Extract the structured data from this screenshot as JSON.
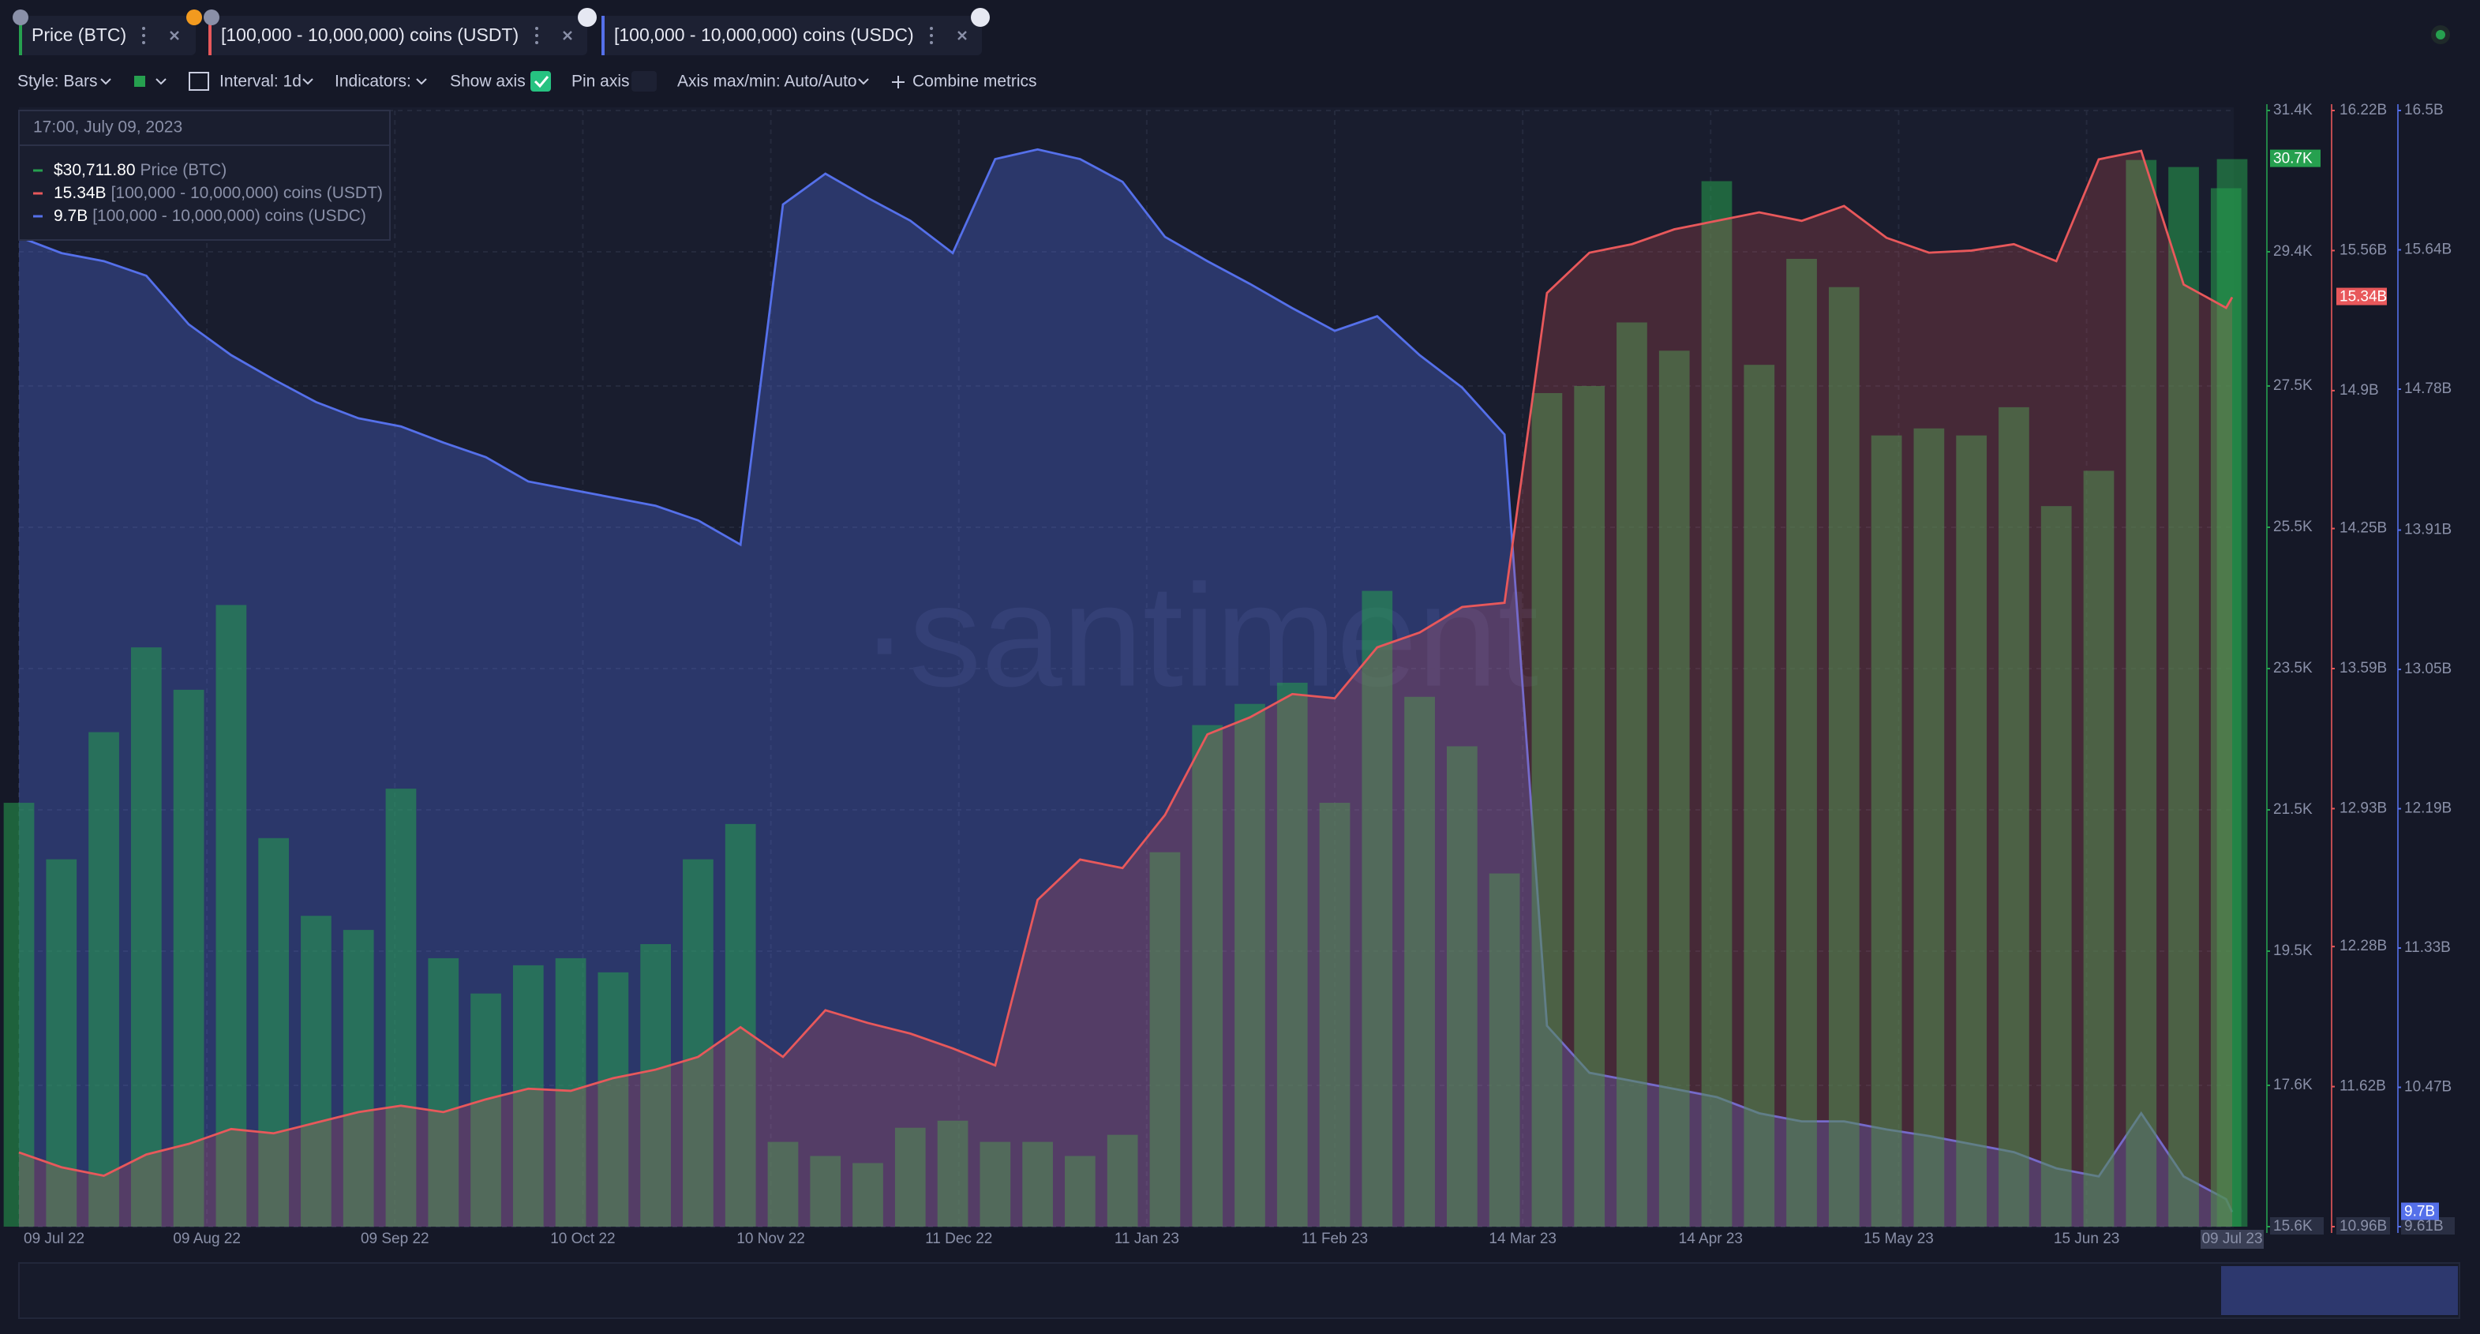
{
  "ui": {
    "style": "Style: Bars",
    "interval": "Interval: 1d",
    "indicators": "Indicators:",
    "show_axis": "Show axis",
    "pin_axis": "Pin axis",
    "axis_minmax": "Axis max/min: Auto/Auto",
    "combine": "Combine metrics",
    "watermark": "·santiment"
  },
  "chart_data": {
    "type": "bar",
    "tooltip": {
      "title": "17:00, July 09, 2023",
      "rows": [
        "$30,711.80",
        "15.34B",
        "9.7B"
      ]
    },
    "x": [
      "2022-07-09",
      "2022-07-16",
      "2022-07-23",
      "2022-07-30",
      "2022-08-06",
      "2022-08-13",
      "2022-08-20",
      "2022-08-27",
      "2022-09-03",
      "2022-09-10",
      "2022-09-17",
      "2022-09-24",
      "2022-10-01",
      "2022-10-08",
      "2022-10-15",
      "2022-10-22",
      "2022-10-29",
      "2022-11-05",
      "2022-11-12",
      "2022-11-19",
      "2022-11-26",
      "2022-12-03",
      "2022-12-10",
      "2022-12-17",
      "2022-12-24",
      "2022-12-31",
      "2023-01-07",
      "2023-01-14",
      "2023-01-21",
      "2023-01-28",
      "2023-02-04",
      "2023-02-11",
      "2023-02-18",
      "2023-02-25",
      "2023-03-04",
      "2023-03-11",
      "2023-03-18",
      "2023-03-25",
      "2023-04-01",
      "2023-04-08",
      "2023-04-15",
      "2023-04-22",
      "2023-04-29",
      "2023-05-06",
      "2023-05-13",
      "2023-05-20",
      "2023-05-27",
      "2023-06-03",
      "2023-06-10",
      "2023-06-17",
      "2023-06-24",
      "2023-07-01",
      "2023-07-08",
      "2023-07-09"
    ],
    "xlim": [
      "2022-07-09",
      "2023-07-09"
    ],
    "xticks": [
      {
        "value": "2022-07-09",
        "label": "09 Jul 22"
      },
      {
        "value": "2022-08-09",
        "label": "09 Aug 22"
      },
      {
        "value": "2022-09-09",
        "label": "09 Sep 22"
      },
      {
        "value": "2022-10-10",
        "label": "10 Oct 22"
      },
      {
        "value": "2022-11-10",
        "label": "10 Nov 22"
      },
      {
        "value": "2022-12-11",
        "label": "11 Dec 22"
      },
      {
        "value": "2023-01-11",
        "label": "11 Jan 23"
      },
      {
        "value": "2023-02-11",
        "label": "11 Feb 23"
      },
      {
        "value": "2023-03-14",
        "label": "14 Mar 23"
      },
      {
        "value": "2023-04-14",
        "label": "14 Apr 23"
      },
      {
        "value": "2023-05-15",
        "label": "15 May 23"
      },
      {
        "value": "2023-06-15",
        "label": "15 Jun 23"
      },
      {
        "value": "2023-07-09",
        "label": "09 Jul 23"
      }
    ],
    "ylim": [
      15600,
      31400
    ],
    "yticks": [
      {
        "value": 15600,
        "label": "15.6K"
      },
      {
        "value": 17600,
        "label": "17.6K"
      },
      {
        "value": 19500,
        "label": "19.5K"
      },
      {
        "value": 21500,
        "label": "21.5K"
      },
      {
        "value": 23500,
        "label": "23.5K"
      },
      {
        "value": 25500,
        "label": "25.5K"
      },
      {
        "value": 27500,
        "label": "27.5K"
      },
      {
        "value": 29400,
        "label": "29.4K"
      },
      {
        "value": 31400,
        "label": "31.4K"
      }
    ],
    "y2lim": [
      10.96,
      16.22
    ],
    "y2ticks": [
      {
        "value": 10.96,
        "label": "10.96B"
      },
      {
        "value": 11.62,
        "label": "11.62B"
      },
      {
        "value": 12.28,
        "label": "12.28B"
      },
      {
        "value": 12.93,
        "label": "12.93B"
      },
      {
        "value": 13.59,
        "label": "13.59B"
      },
      {
        "value": 14.25,
        "label": "14.25B"
      },
      {
        "value": 14.9,
        "label": "14.9B"
      },
      {
        "value": 15.56,
        "label": "15.56B"
      },
      {
        "value": 16.22,
        "label": "16.22B"
      }
    ],
    "y3lim": [
      9.61,
      16.5
    ],
    "y3ticks": [
      {
        "value": 9.61,
        "label": "9.61B"
      },
      {
        "value": 10.47,
        "label": "10.47B"
      },
      {
        "value": 11.33,
        "label": "11.33B"
      },
      {
        "value": 12.19,
        "label": "12.19B"
      },
      {
        "value": 13.05,
        "label": "13.05B"
      },
      {
        "value": 13.91,
        "label": "13.91B"
      },
      {
        "value": 14.78,
        "label": "14.78B"
      },
      {
        "value": 15.64,
        "label": "15.64B"
      },
      {
        "value": 16.5,
        "label": "16.5B"
      }
    ],
    "grid": true,
    "series": [
      {
        "name": "Price (BTC)",
        "type": "bar",
        "axis": "y",
        "color": "#26a04f",
        "last_label": "30.7K",
        "values": [
          21600,
          20800,
          22600,
          23800,
          23200,
          24400,
          21100,
          20000,
          19800,
          21800,
          19400,
          18900,
          19300,
          19400,
          19200,
          19600,
          20800,
          21300,
          16800,
          16600,
          16500,
          17000,
          17100,
          16800,
          16800,
          16600,
          16900,
          20900,
          22700,
          23000,
          23300,
          21600,
          24600,
          23100,
          22400,
          20600,
          27400,
          27500,
          28400,
          28000,
          30400,
          27800,
          29300,
          28900,
          26800,
          26900,
          26800,
          27200,
          25800,
          26300,
          30700,
          30600,
          30300,
          30712
        ]
      },
      {
        "name": "[100,000 - 10,000,000) coins (USDT)",
        "type": "line",
        "axis": "y2",
        "color": "#e8585b",
        "last_label": "15.34B",
        "values": [
          11.31,
          11.24,
          11.2,
          11.3,
          11.35,
          11.42,
          11.4,
          11.45,
          11.5,
          11.53,
          11.5,
          11.56,
          11.61,
          11.6,
          11.66,
          11.7,
          11.76,
          11.9,
          11.76,
          11.98,
          11.92,
          11.87,
          11.8,
          11.72,
          12.5,
          12.69,
          12.65,
          12.9,
          13.28,
          13.36,
          13.47,
          13.45,
          13.69,
          13.76,
          13.88,
          13.9,
          15.36,
          15.55,
          15.59,
          15.66,
          15.7,
          15.74,
          15.7,
          15.77,
          15.62,
          15.55,
          15.56,
          15.59,
          15.51,
          15.99,
          16.03,
          15.4,
          15.29,
          15.34
        ]
      },
      {
        "name": "[100,000 - 10,000,000) coins (USDC)",
        "type": "line",
        "axis": "y3",
        "color": "#5570ea",
        "last_label": "9.7B",
        "values": [
          15.72,
          15.62,
          15.57,
          15.48,
          15.18,
          14.99,
          14.84,
          14.7,
          14.6,
          14.55,
          14.45,
          14.36,
          14.21,
          14.16,
          14.11,
          14.06,
          13.97,
          13.82,
          15.92,
          16.11,
          15.96,
          15.82,
          15.62,
          16.2,
          16.26,
          16.2,
          16.06,
          15.72,
          15.57,
          15.43,
          15.28,
          15.14,
          15.23,
          14.99,
          14.79,
          14.5,
          10.85,
          10.56,
          10.51,
          10.46,
          10.41,
          10.31,
          10.26,
          10.26,
          10.21,
          10.17,
          10.12,
          10.07,
          9.97,
          9.92,
          10.31,
          9.92,
          9.78,
          9.7
        ]
      }
    ]
  }
}
